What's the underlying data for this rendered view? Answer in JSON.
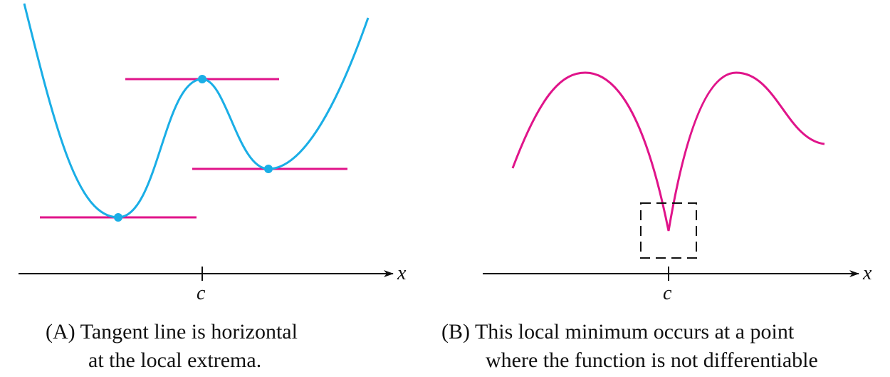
{
  "panel_a": {
    "axis_label": "x",
    "tick_label": "c",
    "caption_label": "(A)",
    "caption_line1": "Tangent line is horizontal",
    "caption_line2": "at the local extrema.",
    "curve_color": "#1AAEE6",
    "tangent_color": "#E0148A"
  },
  "panel_b": {
    "axis_label": "x",
    "tick_label": "c",
    "caption_label": "(B)",
    "caption_line1": "This local minimum occurs at a point",
    "caption_line2": "where the function is not differentiable",
    "curve_color": "#E0148A"
  }
}
